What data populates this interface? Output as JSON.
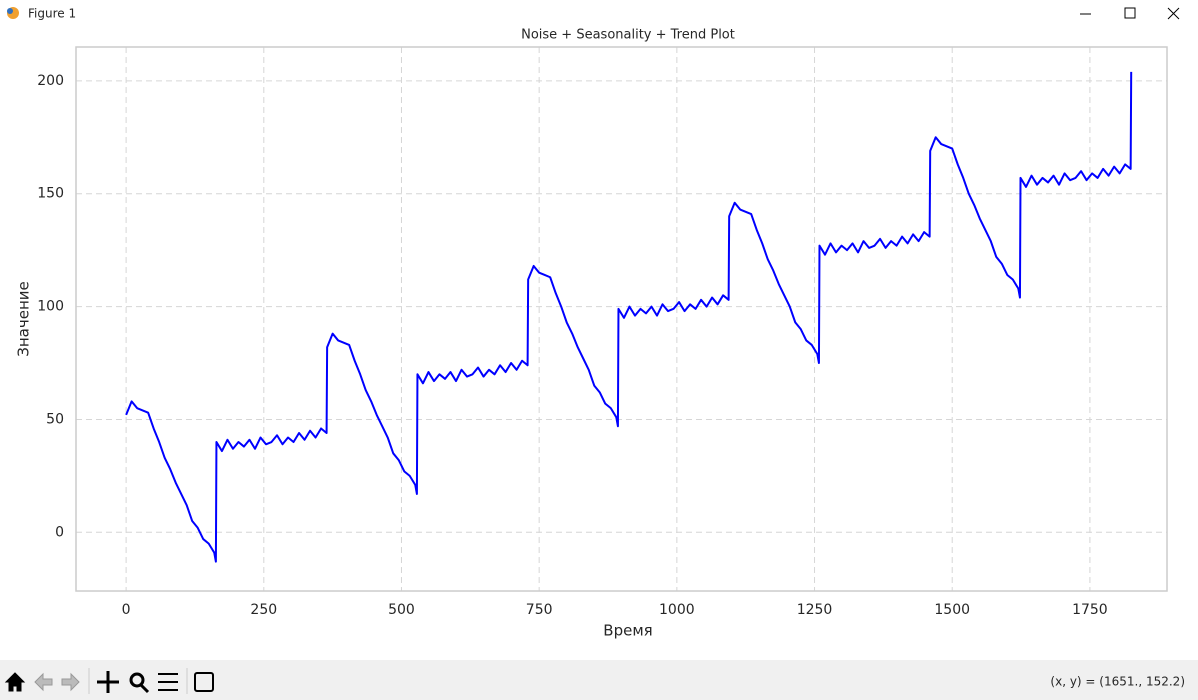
{
  "window": {
    "title": "Figure 1"
  },
  "chart_data": {
    "type": "line",
    "title": "Noise + Seasonality + Trend Plot",
    "x_label": "Время",
    "y_label": "Значение",
    "x": [
      0,
      10,
      20,
      30,
      40,
      50,
      60,
      70,
      80,
      90,
      100,
      110,
      120,
      130,
      140,
      150,
      160,
      163,
      164,
      174,
      184,
      194,
      204,
      214,
      224,
      234,
      244,
      254,
      264,
      274,
      284,
      294,
      304,
      314,
      324,
      334,
      344,
      354,
      364,
      365,
      375,
      385,
      395,
      405,
      415,
      425,
      435,
      445,
      455,
      465,
      475,
      485,
      495,
      505,
      515,
      525,
      528,
      529,
      539,
      549,
      559,
      569,
      579,
      589,
      599,
      609,
      619,
      629,
      639,
      649,
      659,
      669,
      679,
      689,
      699,
      709,
      719,
      729,
      730,
      740,
      750,
      760,
      770,
      780,
      790,
      800,
      810,
      820,
      830,
      840,
      850,
      860,
      870,
      880,
      890,
      893,
      894,
      904,
      914,
      924,
      934,
      944,
      954,
      964,
      974,
      984,
      994,
      1004,
      1014,
      1024,
      1034,
      1044,
      1054,
      1064,
      1074,
      1084,
      1094,
      1095,
      1105,
      1115,
      1125,
      1135,
      1145,
      1155,
      1165,
      1175,
      1185,
      1195,
      1205,
      1215,
      1225,
      1235,
      1245,
      1255,
      1258,
      1259,
      1269,
      1279,
      1289,
      1299,
      1309,
      1319,
      1329,
      1339,
      1349,
      1359,
      1369,
      1379,
      1389,
      1399,
      1409,
      1419,
      1429,
      1439,
      1449,
      1459,
      1460,
      1470,
      1480,
      1490,
      1500,
      1510,
      1520,
      1530,
      1540,
      1550,
      1560,
      1570,
      1580,
      1590,
      1600,
      1610,
      1620,
      1623,
      1624,
      1634,
      1644,
      1654,
      1664,
      1674,
      1684,
      1694,
      1704,
      1714,
      1724,
      1734,
      1744,
      1754,
      1764,
      1774,
      1784,
      1794,
      1804,
      1814,
      1824,
      1825
    ],
    "values": [
      52,
      58,
      55,
      54,
      53,
      46,
      40,
      33,
      28,
      22,
      17,
      12,
      5,
      2,
      -3,
      -5,
      -9,
      -13,
      40,
      36,
      41,
      37,
      40,
      38,
      41,
      37,
      42,
      39,
      40,
      43,
      39,
      42,
      40,
      44,
      41,
      45,
      42,
      46,
      44,
      82,
      88,
      85,
      84,
      83,
      76,
      70,
      63,
      58,
      52,
      47,
      42,
      35,
      32,
      27,
      25,
      21,
      17,
      70,
      66,
      71,
      67,
      70,
      68,
      71,
      67,
      72,
      69,
      70,
      73,
      69,
      72,
      70,
      74,
      71,
      75,
      72,
      76,
      74,
      112,
      118,
      115,
      114,
      113,
      106,
      100,
      93,
      88,
      82,
      77,
      72,
      65,
      62,
      57,
      55,
      51,
      47,
      99,
      95,
      100,
      96,
      99,
      97,
      100,
      96,
      101,
      98,
      99,
      102,
      98,
      101,
      99,
      103,
      100,
      104,
      101,
      105,
      103,
      140,
      146,
      143,
      142,
      141,
      134,
      128,
      121,
      116,
      110,
      105,
      100,
      93,
      90,
      85,
      83,
      79,
      75,
      127,
      123,
      128,
      124,
      127,
      125,
      128,
      124,
      129,
      126,
      127,
      130,
      126,
      129,
      127,
      131,
      128,
      132,
      129,
      133,
      131,
      169,
      175,
      172,
      171,
      170,
      163,
      157,
      150,
      145,
      139,
      134,
      129,
      122,
      119,
      114,
      112,
      108,
      104,
      157,
      153,
      158,
      154,
      157,
      155,
      158,
      154,
      159,
      156,
      157,
      160,
      156,
      159,
      157,
      161,
      158,
      162,
      159,
      163,
      161,
      204
    ],
    "color": "#0000ff",
    "xlim": [
      -91,
      1890
    ],
    "xticks": [
      0,
      250,
      500,
      750,
      1000,
      1250,
      1500,
      1750
    ],
    "ylim": [
      -26,
      215
    ],
    "yticks": [
      0,
      50,
      100,
      150,
      200
    ],
    "grid": true
  },
  "toolbar": {
    "status": "(x, y) = (1651., 152.2)"
  }
}
